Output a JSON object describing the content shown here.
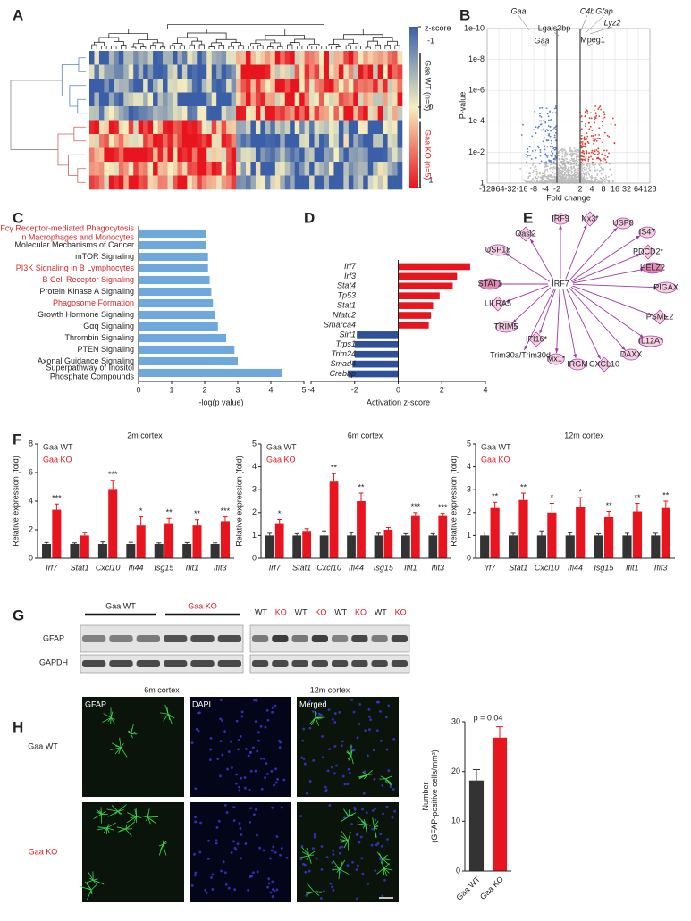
{
  "panel_labels": [
    "A",
    "B",
    "C",
    "D",
    "E",
    "F",
    "G",
    "H"
  ],
  "heatmap": {
    "colorbar_title": "z-score",
    "colorbar_lim": [
      -1,
      1
    ],
    "colorbar_ticks": [
      -1,
      0,
      1
    ],
    "groups": [
      "Gaa WT (n=5)",
      "Gaa KO (n=5)"
    ],
    "group_colors": [
      "#222222",
      "#e8141e"
    ]
  },
  "volcano": {
    "xlabel": "Fold change",
    "ylabel": "P-value",
    "xlim": [
      -128,
      128
    ],
    "xticks": [
      -128,
      -64,
      -32,
      -16,
      -8,
      -4,
      -2,
      2,
      4,
      8,
      16,
      32,
      64,
      128
    ],
    "ylim": [
      1,
      1e-10
    ],
    "log_y": true,
    "yticks": [
      {
        "value": 1e-10,
        "label": "1e-10"
      },
      {
        "value": 1e-08,
        "label": "1e-8"
      },
      {
        "value": 1e-06,
        "label": "1e-6"
      },
      {
        "value": 0.0001,
        "label": "1e-4"
      },
      {
        "value": 0.01,
        "label": "1e-2"
      },
      1
    ],
    "thresholds": {
      "fold_change": [
        -2,
        2
      ],
      "p_value": 0.05
    },
    "annotations": [
      "Gaa",
      "Lgals3bp",
      "C4b",
      "Gfap",
      "Lyz2",
      "Gaa",
      "Mpeg1"
    ]
  },
  "network": {
    "center": "IRF7",
    "nodes": [
      "IRF9",
      "Nx3*",
      "USP8",
      "IS47",
      "PDCD2*",
      "HELZ2",
      "PIGAX",
      "PSME2",
      "IL12A*",
      "DAXX",
      "CXCL10",
      "IRGM",
      "Mx1*",
      "IFI16*",
      "Trim30a/Trim30d",
      "TRIM5",
      "LILRA5",
      "STAT1",
      "USP18",
      "Oasl2"
    ]
  },
  "chart_data": [
    {
      "type": "barh",
      "xlabel": "-log(p value)",
      "categories": [
        "Fcγ Receptor-mediated Phagocytosis\nin Macrophages and Monocytes",
        "Molecular Mechanisms of Cancer",
        "mTOR Signaling",
        "PI3K Signaling in B Lymphocytes",
        "B Cell Receptor Signaling",
        "Protein Kinase A Signaling",
        "Phagosome Formation",
        "Growth Hormone Signaling",
        "Gαq Signaling",
        "Thrombin Signaling",
        "PTEN Signaling",
        "Axonal Guidance Signaling",
        "Superpathway of Inositol\nPhosphate Compounds"
      ],
      "values": [
        2.05,
        2.05,
        2.1,
        2.1,
        2.15,
        2.2,
        2.25,
        2.3,
        2.4,
        2.65,
        2.9,
        3.0,
        4.35
      ],
      "color": "#6fa8dc",
      "label_colors": [
        "#d62728",
        "#222222",
        "#222222",
        "#d62728",
        "#d62728",
        "#222222",
        "#d62728",
        "#222222",
        "#222222",
        "#222222",
        "#222222",
        "#222222",
        "#222222"
      ],
      "xlim": [
        0,
        5
      ],
      "xticks": [
        0,
        1,
        2,
        3,
        4,
        5
      ]
    },
    {
      "type": "barh",
      "xlabel": "Activation z-score",
      "categories": [
        "Irf7",
        "Irf3",
        "Stat4",
        "Tp53",
        "Stat1",
        "Nfatc2",
        "Smarca4",
        "Sirt1",
        "Trps1",
        "Trim24",
        "Smad4",
        "Crebbp"
      ],
      "values": [
        3.3,
        2.7,
        2.5,
        1.9,
        1.6,
        1.5,
        1.4,
        -1.9,
        -2.0,
        -2.0,
        -2.1,
        -2.3
      ],
      "positive_color": "#e8141e",
      "negative_color": "#2e4f9a",
      "xlim": [
        -4,
        4
      ],
      "xticks": [
        -4,
        -2,
        0,
        2,
        4
      ]
    },
    {
      "type": "bar",
      "title": "2m cortex",
      "ylabel": "Relative expression (fold)",
      "categories": [
        "Irf7",
        "Stat1",
        "Cxcl10",
        "Ifi44",
        "Isg15",
        "Ifit1",
        "Ifit3"
      ],
      "series": [
        {
          "name": "Gaa WT",
          "color": "#333333",
          "values": [
            1.0,
            1.0,
            1.0,
            1.0,
            1.0,
            1.0,
            1.0
          ],
          "errors": [
            0.1,
            0.08,
            0.15,
            0.12,
            0.08,
            0.1,
            0.08
          ]
        },
        {
          "name": "Gaa KO",
          "color": "#e8141e",
          "values": [
            3.4,
            1.6,
            4.85,
            2.3,
            2.4,
            2.3,
            2.6
          ],
          "errors": [
            0.4,
            0.2,
            0.6,
            0.6,
            0.4,
            0.4,
            0.3
          ]
        }
      ],
      "annotations": [
        "***",
        null,
        "***",
        "*",
        "**",
        "**",
        "***"
      ],
      "ylim": [
        0,
        8
      ],
      "yticks": [
        0,
        2,
        4,
        6,
        8
      ]
    },
    {
      "type": "bar",
      "title": "6m cortex",
      "ylabel": "Relative expression (fold)",
      "categories": [
        "Irf7",
        "Stat1",
        "Cxcl10",
        "Ifi44",
        "Isg15",
        "Ifit1",
        "Ifit3"
      ],
      "series": [
        {
          "name": "Gaa WT",
          "color": "#333333",
          "values": [
            1.0,
            1.0,
            1.0,
            1.0,
            1.0,
            1.0,
            1.0
          ],
          "errors": [
            0.1,
            0.08,
            0.2,
            0.12,
            0.1,
            0.08,
            0.08
          ]
        },
        {
          "name": "Gaa KO",
          "color": "#e8141e",
          "values": [
            1.5,
            1.2,
            3.35,
            2.5,
            1.25,
            1.85,
            1.85
          ],
          "errors": [
            0.2,
            0.1,
            0.35,
            0.35,
            0.1,
            0.15,
            0.12
          ]
        }
      ],
      "annotations": [
        "*",
        null,
        "**",
        "**",
        null,
        "***",
        "***"
      ],
      "ylim": [
        0,
        5
      ],
      "yticks": [
        0,
        1,
        2,
        3,
        4,
        5
      ]
    },
    {
      "type": "bar",
      "title": "12m cortex",
      "ylabel": "Relative expression (fold)",
      "categories": [
        "Irf7",
        "Stat1",
        "Cxcl10",
        "Ifi44",
        "Isg15",
        "Ifit1",
        "Ifit3"
      ],
      "series": [
        {
          "name": "Gaa WT",
          "color": "#333333",
          "values": [
            1.0,
            1.0,
            1.0,
            1.0,
            1.0,
            1.0,
            1.0
          ],
          "errors": [
            0.15,
            0.1,
            0.2,
            0.12,
            0.08,
            0.1,
            0.1
          ]
        },
        {
          "name": "Gaa KO",
          "color": "#e8141e",
          "values": [
            2.2,
            2.55,
            2.0,
            2.25,
            1.8,
            2.05,
            2.2
          ],
          "errors": [
            0.25,
            0.3,
            0.4,
            0.4,
            0.25,
            0.35,
            0.3
          ]
        }
      ],
      "annotations": [
        "**",
        "**",
        "*",
        "*",
        "**",
        "**",
        "**"
      ],
      "ylim": [
        0,
        5
      ],
      "yticks": [
        0,
        1,
        2,
        3,
        4,
        5
      ]
    },
    {
      "type": "bar",
      "ylabel": "Number\n(GFAP-positive cells/mm²)",
      "annotation": "p = 0.04",
      "categories": [
        "Gaa WT",
        "Gaa KO"
      ],
      "values": [
        18.2,
        26.8
      ],
      "errors": [
        2.2,
        2.2
      ],
      "colors": [
        "#333333",
        "#e8141e"
      ],
      "ylim": [
        0,
        30
      ],
      "yticks": [
        0,
        10,
        20,
        30
      ]
    }
  ],
  "blot": {
    "groups": [
      "Gaa WT",
      "Gaa KO"
    ],
    "lanes": [
      "WT",
      "KO",
      "WT",
      "KO",
      "WT",
      "KO",
      "WT",
      "KO"
    ],
    "lane_colors": [
      "#222222",
      "#e8141e"
    ],
    "proteins": [
      "GFAP",
      "GAPDH"
    ],
    "captions": [
      "6m cortex",
      "12m cortex"
    ]
  },
  "micrographs": {
    "channels": [
      "GFAP",
      "DAPI",
      "Merged"
    ],
    "rows": [
      "Gaa WT",
      "Gaa KO"
    ],
    "row_colors": [
      "#222222",
      "#e8141e"
    ]
  }
}
